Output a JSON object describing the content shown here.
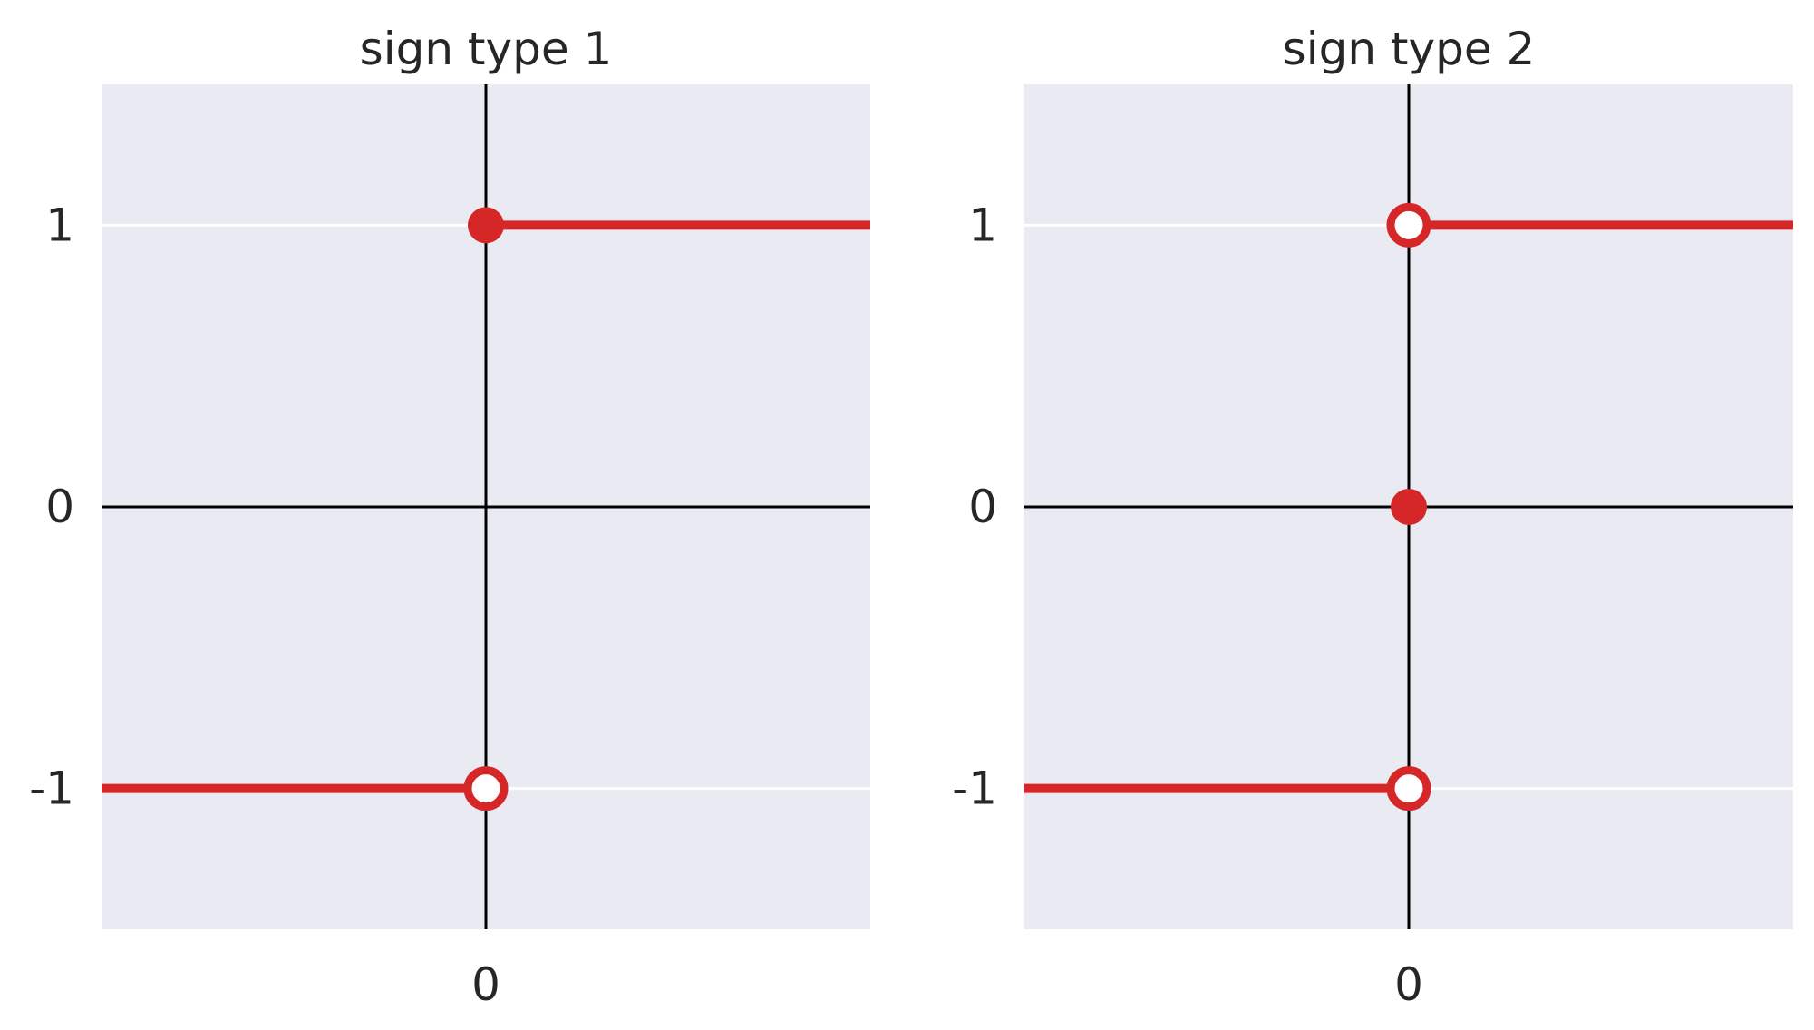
{
  "chart_data": [
    {
      "type": "line",
      "title": "sign type 1",
      "xlabel": "",
      "ylabel": "",
      "xticks": [
        {
          "value": 0,
          "label": "0"
        }
      ],
      "yticks": [
        {
          "value": 1,
          "label": "1"
        },
        {
          "value": 0,
          "label": "0"
        },
        {
          "value": -1,
          "label": "-1"
        }
      ],
      "xlim": [
        -1,
        1
      ],
      "ylim": [
        -1.5,
        1.5
      ],
      "grid": true,
      "background": "#eaeaf2",
      "series": [
        {
          "x": [
            -1,
            0
          ],
          "y": [
            -1,
            -1
          ],
          "color": "#d62728"
        },
        {
          "x": [
            0,
            1
          ],
          "y": [
            1,
            1
          ],
          "color": "#d62728"
        }
      ],
      "points": [
        {
          "x": 0,
          "y": 1,
          "filled": true
        },
        {
          "x": 0,
          "y": -1,
          "filled": false
        }
      ]
    },
    {
      "type": "line",
      "title": "sign type 2",
      "xlabel": "",
      "ylabel": "",
      "xticks": [
        {
          "value": 0,
          "label": "0"
        }
      ],
      "yticks": [
        {
          "value": 1,
          "label": "1"
        },
        {
          "value": 0,
          "label": "0"
        },
        {
          "value": -1,
          "label": "-1"
        }
      ],
      "xlim": [
        -1,
        1
      ],
      "ylim": [
        -1.5,
        1.5
      ],
      "grid": true,
      "background": "#eaeaf2",
      "series": [
        {
          "x": [
            -1,
            0
          ],
          "y": [
            -1,
            -1
          ],
          "color": "#d62728"
        },
        {
          "x": [
            0,
            1
          ],
          "y": [
            1,
            1
          ],
          "color": "#d62728"
        }
      ],
      "points": [
        {
          "x": 0,
          "y": 1,
          "filled": false
        },
        {
          "x": 0,
          "y": 0,
          "filled": true
        },
        {
          "x": 0,
          "y": -1,
          "filled": false
        }
      ]
    }
  ]
}
